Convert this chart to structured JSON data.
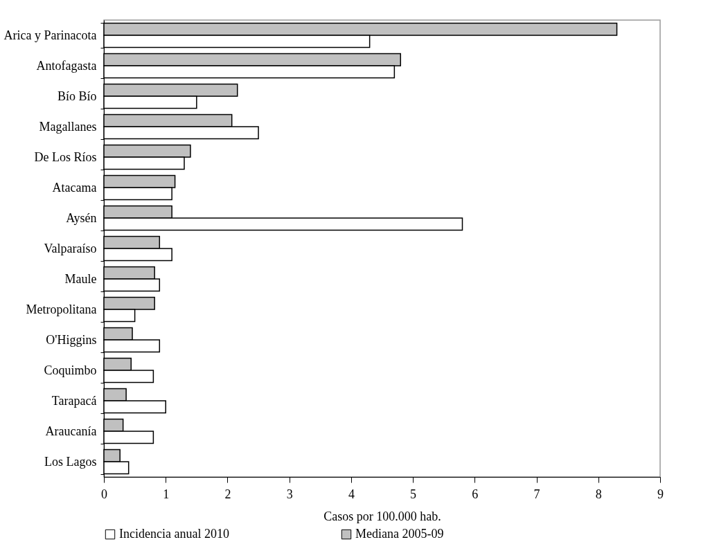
{
  "chart_data": {
    "type": "bar",
    "orientation": "horizontal",
    "xlabel": "Casos por 100.000 hab.",
    "categories": [
      "Arica y Parinacota",
      "Antofagasta",
      "Bío Bío",
      "Magallanes",
      "De Los Ríos",
      "Atacama",
      "Aysén",
      "Valparaíso",
      "Maule",
      "Metropolitana",
      "O'Higgins",
      "Coquimbo",
      "Tarapacá",
      "Araucanía",
      "Los Lagos"
    ],
    "series": [
      {
        "name": "Mediana 2005-09",
        "color": "#c0c0c0",
        "values": [
          8.3,
          4.8,
          2.16,
          2.07,
          1.4,
          1.15,
          1.1,
          0.9,
          0.82,
          0.82,
          0.46,
          0.44,
          0.36,
          0.31,
          0.26
        ]
      },
      {
        "name": "Incidencia anual 2010",
        "color": "#ffffff",
        "values": [
          4.3,
          4.7,
          1.5,
          2.5,
          1.3,
          1.1,
          5.8,
          1.1,
          0.9,
          0.5,
          0.9,
          0.8,
          1.0,
          0.8,
          0.4
        ]
      }
    ],
    "xlim": [
      0,
      9
    ],
    "xticks": [
      0,
      1,
      2,
      3,
      4,
      5,
      6,
      7,
      8,
      9
    ],
    "grid": false,
    "legend": "bottom"
  }
}
